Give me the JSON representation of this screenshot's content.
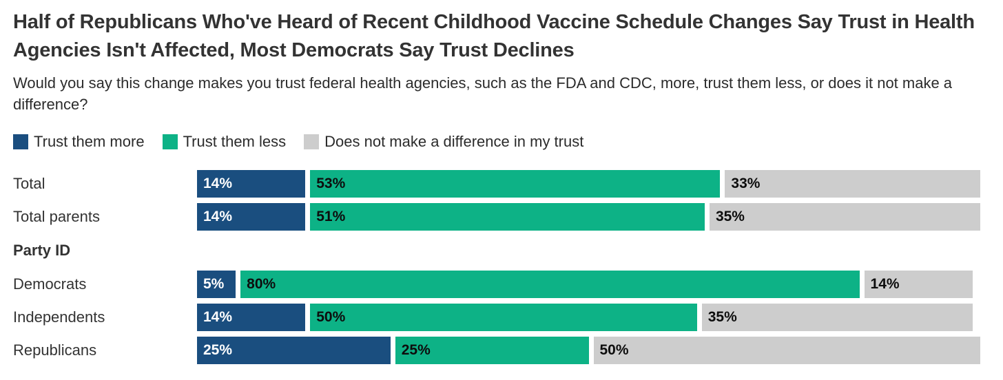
{
  "title": "Half of Republicans Who've Heard of Recent Childhood Vaccine Schedule Changes Say Trust in Health Agencies Isn't Affected, Most Democrats Say Trust Declines",
  "subtitle": "Would you say this change makes you trust federal health agencies, such as the FDA and CDC, more, trust them less, or does it not make a difference?",
  "legend": [
    {
      "label": "Trust them more",
      "color": "#1a4e7f"
    },
    {
      "label": "Trust them less",
      "color": "#0db286"
    },
    {
      "label": "Does not make a difference in my trust",
      "color": "#cdcdcd"
    }
  ],
  "section_header": "Party ID",
  "rows": [
    {
      "label": "Total",
      "display": [
        "14%",
        "53%",
        "33%"
      ]
    },
    {
      "label": "Total parents",
      "display": [
        "14%",
        "51%",
        "35%"
      ]
    },
    {
      "label": "Democrats",
      "display": [
        "5%",
        "80%",
        "14%"
      ]
    },
    {
      "label": "Independents",
      "display": [
        "14%",
        "50%",
        "35%"
      ]
    },
    {
      "label": "Republicans",
      "display": [
        "25%",
        "25%",
        "50%"
      ]
    }
  ],
  "chart_data": {
    "type": "bar",
    "orientation": "horizontal",
    "stacked": true,
    "title": "Half of Republicans Who've Heard of Recent Childhood Vaccine Schedule Changes Say Trust in Health Agencies Isn't Affected, Most Democrats Say Trust Declines",
    "subtitle": "Would you say this change makes you trust federal health agencies, such as the FDA and CDC, more, trust them less, or does it not make a difference?",
    "categories": [
      "Total",
      "Total parents",
      "Democrats",
      "Independents",
      "Republicans"
    ],
    "category_group_label": "Party ID",
    "category_group_members": [
      "Democrats",
      "Independents",
      "Republicans"
    ],
    "series": [
      {
        "name": "Trust them more",
        "color": "#1a4e7f",
        "values": [
          14,
          14,
          5,
          14,
          25
        ]
      },
      {
        "name": "Trust them less",
        "color": "#0db286",
        "values": [
          53,
          51,
          80,
          50,
          25
        ]
      },
      {
        "name": "Does not make a difference in my trust",
        "color": "#cdcdcd",
        "values": [
          33,
          35,
          14,
          35,
          50
        ]
      }
    ],
    "value_format": "percent",
    "xlim": [
      0,
      100
    ],
    "grid": false,
    "legend_position": "top",
    "value_labels": "inside-start"
  }
}
